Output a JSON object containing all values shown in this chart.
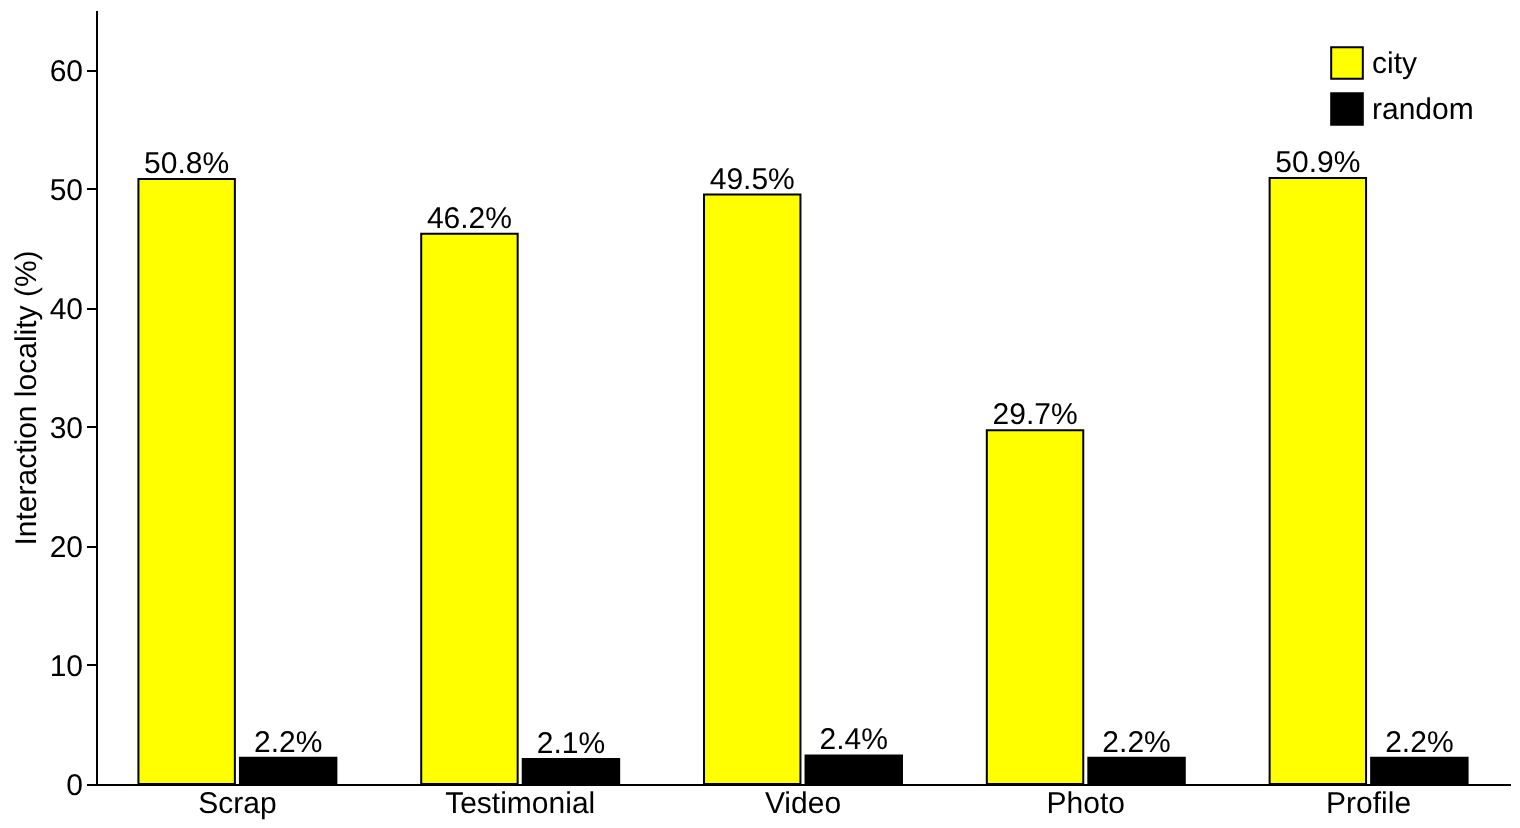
{
  "chart_data": {
    "type": "bar",
    "ylabel": "Interaction locality (%)",
    "categories": [
      "Scrap",
      "Testimonial",
      "Video",
      "Photo",
      "Profile"
    ],
    "series": [
      {
        "name": "city",
        "color": "#ffff00",
        "values": [
          50.8,
          46.2,
          49.5,
          29.7,
          50.9
        ],
        "value_labels": [
          "50.8%",
          "46.2%",
          "49.5%",
          "29.7%",
          "50.9%"
        ]
      },
      {
        "name": "random",
        "color": "#000000",
        "values": [
          2.2,
          2.1,
          2.4,
          2.2,
          2.2
        ],
        "value_labels": [
          "2.2%",
          "2.1%",
          "2.4%",
          "2.2%",
          "2.2%"
        ]
      }
    ],
    "ylim": [
      0,
      65
    ],
    "yticks": [
      0,
      10,
      20,
      30,
      40,
      50,
      60
    ],
    "grid": false,
    "legend": "top right"
  }
}
